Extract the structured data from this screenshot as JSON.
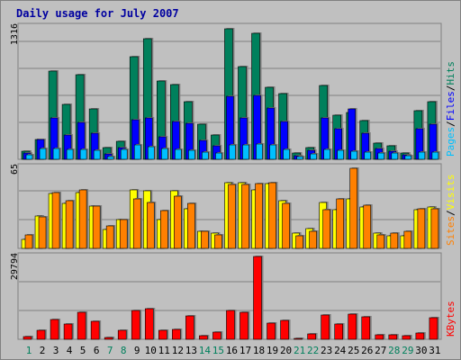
{
  "title": "Daily usage for July 2007",
  "colors": {
    "hits": "#00805c",
    "files": "#0000ff",
    "pages": "#00c0ff",
    "visits": "#ffff00",
    "sites": "#ff8000",
    "kbytes": "#ff0000",
    "weekday_label": "#000000",
    "weekend_label": "#00805c",
    "legend_sep": "#000000"
  },
  "legend": {
    "pages": "Pages",
    "files": "Files",
    "hits": "Hits",
    "sites": "Sites",
    "visits": "Visits",
    "kbytes": "KBytes",
    "sep": "/"
  },
  "chart_data": [
    {
      "type": "bar",
      "name": "hits-files-pages",
      "ymax_label": "1316",
      "ylim": [
        0,
        1316
      ],
      "categories": [
        "1",
        "2",
        "3",
        "4",
        "5",
        "6",
        "7",
        "8",
        "9",
        "10",
        "11",
        "12",
        "13",
        "14",
        "15",
        "16",
        "17",
        "18",
        "19",
        "20",
        "21",
        "22",
        "23",
        "24",
        "25",
        "26",
        "27",
        "28",
        "29",
        "30",
        "31"
      ],
      "weekend": [
        1,
        7,
        8,
        14,
        15,
        21,
        22,
        28,
        29
      ],
      "series": [
        {
          "name": "Hits",
          "values": [
            85,
            195,
            880,
            545,
            845,
            500,
            120,
            180,
            1025,
            1200,
            780,
            745,
            570,
            350,
            240,
            1295,
            920,
            1255,
            715,
            650,
            60,
            120,
            735,
            440,
            465,
            385,
            165,
            130,
            60,
            480,
            575
          ]
        },
        {
          "name": "Files",
          "values": [
            60,
            200,
            410,
            245,
            365,
            260,
            50,
            115,
            395,
            410,
            225,
            375,
            355,
            185,
            130,
            630,
            415,
            640,
            510,
            380,
            40,
            90,
            410,
            305,
            500,
            260,
            105,
            85,
            45,
            300,
            350
          ]
        },
        {
          "name": "Pages",
          "values": [
            45,
            110,
            105,
            100,
            100,
            90,
            30,
            95,
            140,
            125,
            105,
            95,
            90,
            75,
            65,
            140,
            140,
            150,
            140,
            95,
            25,
            55,
            95,
            90,
            85,
            75,
            65,
            60,
            40,
            70,
            75
          ]
        }
      ]
    },
    {
      "type": "bar",
      "name": "visits-sites",
      "ymax_label": "65",
      "ylim": [
        0,
        65
      ],
      "categories": [
        "1",
        "2",
        "3",
        "4",
        "5",
        "6",
        "7",
        "8",
        "9",
        "10",
        "11",
        "12",
        "13",
        "14",
        "15",
        "16",
        "17",
        "18",
        "19",
        "20",
        "21",
        "22",
        "23",
        "24",
        "25",
        "26",
        "27",
        "28",
        "29",
        "30",
        "31"
      ],
      "series": [
        {
          "name": "Visits",
          "values": [
            7,
            26,
            44,
            36,
            45,
            34,
            15,
            23,
            47,
            46,
            23,
            46,
            32,
            14,
            12,
            53,
            53,
            47,
            52,
            38,
            12,
            16,
            37,
            31,
            40,
            33,
            12,
            10,
            10,
            31,
            33
          ]
        },
        {
          "name": "Sites",
          "values": [
            11,
            25,
            45,
            38,
            47,
            34,
            18,
            23,
            40,
            37,
            30,
            42,
            36,
            14,
            11,
            51,
            51,
            52,
            53,
            36,
            10,
            14,
            31,
            40,
            64,
            35,
            11,
            12,
            14,
            32,
            32
          ]
        }
      ]
    },
    {
      "type": "bar",
      "name": "kbytes",
      "ymax_label": "29794",
      "ylim": [
        0,
        29794
      ],
      "categories": [
        "1",
        "2",
        "3",
        "4",
        "5",
        "6",
        "7",
        "8",
        "9",
        "10",
        "11",
        "12",
        "13",
        "14",
        "15",
        "16",
        "17",
        "18",
        "19",
        "20",
        "21",
        "22",
        "23",
        "24",
        "25",
        "26",
        "27",
        "28",
        "29",
        "30",
        "31"
      ],
      "series": [
        {
          "name": "KBytes",
          "values": [
            1100,
            3300,
            7000,
            5600,
            9600,
            6600,
            500,
            3200,
            10400,
            10900,
            3400,
            3700,
            8400,
            1300,
            2500,
            10400,
            9700,
            29794,
            5800,
            6700,
            200,
            1800,
            8700,
            5400,
            9100,
            8200,
            1500,
            1500,
            1200,
            2400,
            7700
          ]
        }
      ]
    }
  ]
}
